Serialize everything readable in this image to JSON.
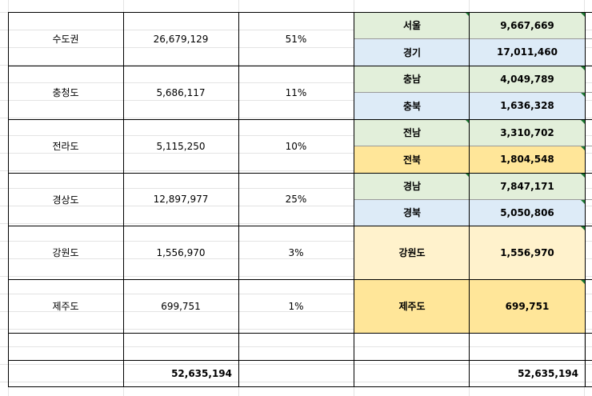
{
  "left_table": {
    "rows": [
      {
        "region": "수도권",
        "population": "26,679,129",
        "share": "51%"
      },
      {
        "region": "충청도",
        "population": "5,686,117",
        "share": "11%"
      },
      {
        "region": "전라도",
        "population": "5,115,250",
        "share": "10%"
      },
      {
        "region": "경상도",
        "population": "12,897,977",
        "share": "25%"
      },
      {
        "region": "강원도",
        "population": "1,556,970",
        "share": "3%"
      },
      {
        "region": "제주도",
        "population": "699,751",
        "share": "1%"
      }
    ],
    "total": "52,635,194"
  },
  "right_table": {
    "rows": [
      {
        "name": "서울",
        "value": "9,667,669",
        "color": "#e2efda"
      },
      {
        "name": "경기",
        "value": "17,011,460",
        "color": "#ddebf7"
      },
      {
        "name": "충남",
        "value": "4,049,789",
        "color": "#e2efda"
      },
      {
        "name": "충북",
        "value": "1,636,328",
        "color": "#ddebf7"
      },
      {
        "name": "전남",
        "value": "3,310,702",
        "color": "#e2efda"
      },
      {
        "name": "전북",
        "value": "1,804,548",
        "color": "#ffe699"
      },
      {
        "name": "경남",
        "value": "7,847,171",
        "color": "#e2efda"
      },
      {
        "name": "경북",
        "value": "5,050,806",
        "color": "#ddebf7"
      },
      {
        "name": "강원도",
        "value": "1,556,970",
        "color": "#fff2cc"
      },
      {
        "name": "제주도",
        "value": "699,751",
        "color": "#ffe699"
      }
    ],
    "total": "52,635,194"
  },
  "colors": {
    "green": "#e2efda",
    "blue": "#ddebf7",
    "yellow": "#ffe699",
    "light_yellow": "#fff2cc",
    "comment_marker": "#1e7b34"
  }
}
